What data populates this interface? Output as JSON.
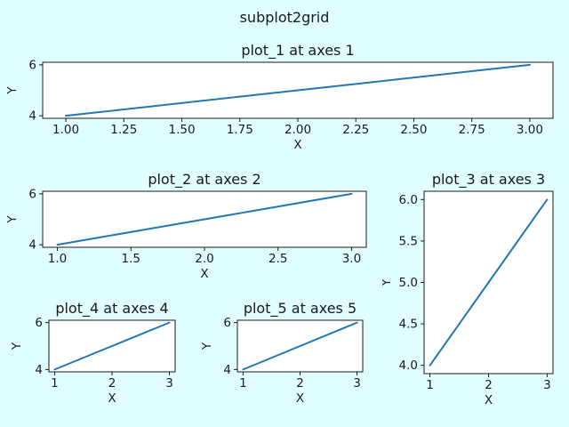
{
  "figure": {
    "suptitle": "subplot2grid",
    "background": "#e0feff",
    "axes_facecolor": "#ffffff",
    "line_color": "#1f77b4",
    "spine_color": "#1a1a1a",
    "text_color": "#1a1a1a"
  },
  "chart_data": [
    {
      "type": "line",
      "title": "plot_1 at axes 1",
      "xlabel": "X",
      "ylabel": "Y",
      "x": [
        1,
        2,
        3
      ],
      "y": [
        4,
        5,
        6
      ],
      "xlim": [
        0.9,
        3.1
      ],
      "ylim": [
        3.9,
        6.1
      ],
      "grid": false,
      "xticks": {
        "values": [
          1.0,
          1.25,
          1.5,
          1.75,
          2.0,
          2.25,
          2.5,
          2.75,
          3.0
        ],
        "labels": [
          "1.00",
          "1.25",
          "1.50",
          "1.75",
          "2.00",
          "2.25",
          "2.50",
          "2.75",
          "3.00"
        ]
      },
      "yticks": {
        "values": [
          4,
          6
        ],
        "labels": [
          "4",
          "6"
        ]
      }
    },
    {
      "type": "line",
      "title": "plot_2 at axes 2",
      "xlabel": "X",
      "ylabel": "Y",
      "x": [
        1,
        2,
        3
      ],
      "y": [
        4,
        5,
        6
      ],
      "xlim": [
        0.9,
        3.1
      ],
      "ylim": [
        3.9,
        6.1
      ],
      "grid": false,
      "xticks": {
        "values": [
          1.0,
          1.5,
          2.0,
          2.5,
          3.0
        ],
        "labels": [
          "1.0",
          "1.5",
          "2.0",
          "2.5",
          "3.0"
        ]
      },
      "yticks": {
        "values": [
          4,
          6
        ],
        "labels": [
          "4",
          "6"
        ]
      }
    },
    {
      "type": "line",
      "title": "plot_3 at axes 3",
      "xlabel": "X",
      "ylabel": "Y",
      "x": [
        1,
        2,
        3
      ],
      "y": [
        4,
        5,
        6
      ],
      "xlim": [
        0.9,
        3.1
      ],
      "ylim": [
        3.9,
        6.1
      ],
      "grid": false,
      "xticks": {
        "values": [
          1,
          2,
          3
        ],
        "labels": [
          "1",
          "2",
          "3"
        ]
      },
      "yticks": {
        "values": [
          4.0,
          4.5,
          5.0,
          5.5,
          6.0
        ],
        "labels": [
          "4.0",
          "4.5",
          "5.0",
          "5.5",
          "6.0"
        ]
      }
    },
    {
      "type": "line",
      "title": "plot_4 at axes 4",
      "xlabel": "X",
      "ylabel": "Y",
      "x": [
        1,
        2,
        3
      ],
      "y": [
        4,
        5,
        6
      ],
      "xlim": [
        0.9,
        3.1
      ],
      "ylim": [
        3.9,
        6.1
      ],
      "grid": false,
      "xticks": {
        "values": [
          1,
          2,
          3
        ],
        "labels": [
          "1",
          "2",
          "3"
        ]
      },
      "yticks": {
        "values": [
          4,
          6
        ],
        "labels": [
          "4",
          "6"
        ]
      }
    },
    {
      "type": "line",
      "title": "plot_5 at axes 5",
      "xlabel": "X",
      "ylabel": "Y",
      "x": [
        1,
        2,
        3
      ],
      "y": [
        4,
        5,
        6
      ],
      "xlim": [
        0.9,
        3.1
      ],
      "ylim": [
        3.9,
        6.1
      ],
      "grid": false,
      "xticks": {
        "values": [
          1,
          2,
          3
        ],
        "labels": [
          "1",
          "2",
          "3"
        ]
      },
      "yticks": {
        "values": [
          4,
          6
        ],
        "labels": [
          "4",
          "6"
        ]
      }
    }
  ]
}
